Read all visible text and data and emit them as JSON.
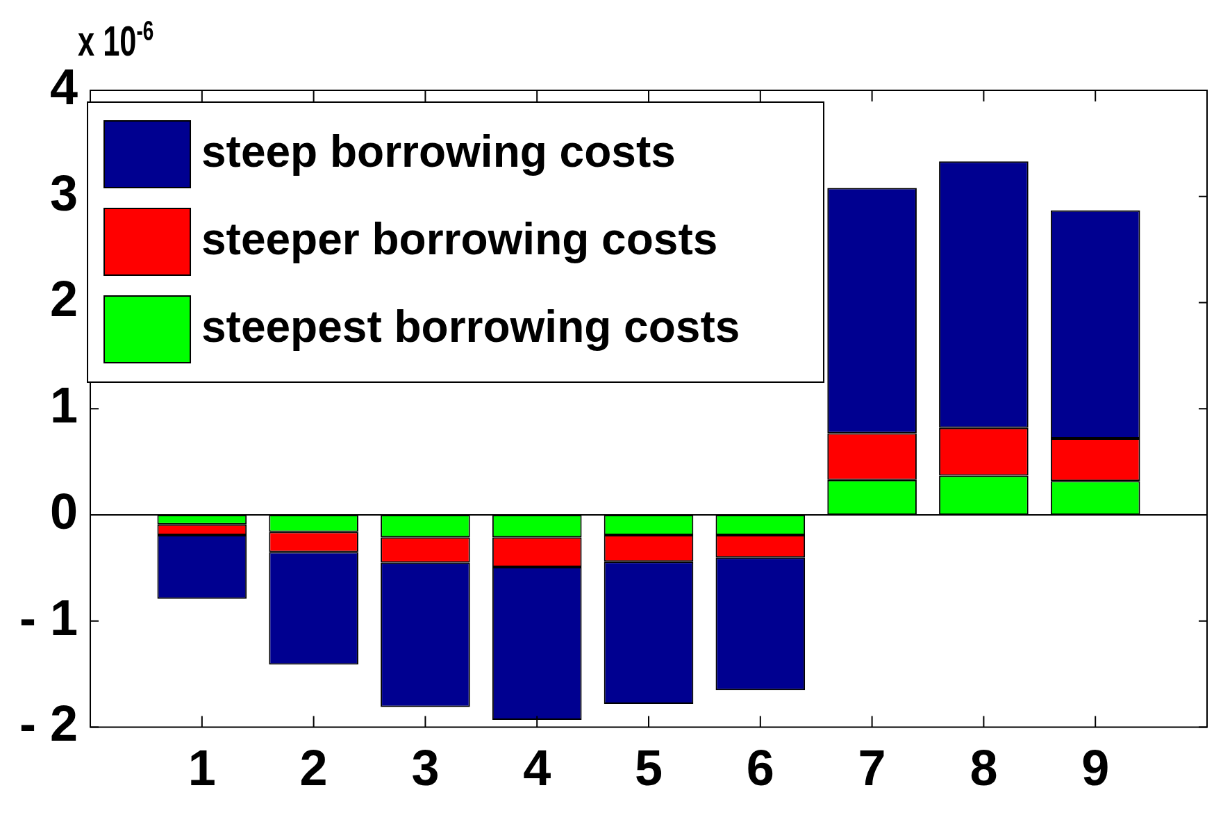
{
  "chart_data": {
    "type": "bar",
    "x": [
      1,
      2,
      3,
      4,
      5,
      6,
      7,
      8,
      9
    ],
    "series": [
      {
        "name": "steepest borrowing costs",
        "color": "#00ff00",
        "values": [
          -0.09,
          -0.16,
          -0.21,
          -0.21,
          -0.19,
          -0.19,
          0.33,
          0.37,
          0.32
        ]
      },
      {
        "name": "steeper borrowing costs",
        "color": "#ff0000",
        "values": [
          -0.1,
          -0.19,
          -0.24,
          -0.28,
          -0.25,
          -0.21,
          0.44,
          0.45,
          0.4
        ]
      },
      {
        "name": "steep borrowing costs",
        "color": "#000090",
        "values": [
          -0.6,
          -1.06,
          -1.36,
          -1.44,
          -1.34,
          -1.25,
          2.31,
          2.51,
          2.15
        ]
      }
    ],
    "stacked": true,
    "ref_lines": [
      {
        "axis": "y",
        "value": 0,
        "color": "#000000"
      }
    ],
    "xlim": [
      0,
      10
    ],
    "xticks": [
      1,
      2,
      3,
      4,
      5,
      6,
      7,
      8,
      9
    ],
    "ylim": [
      -2,
      4
    ],
    "yticks": [
      -2,
      -1,
      0,
      1,
      2,
      3,
      4
    ],
    "annotations": [
      "x 10$^{-6}$"
    ],
    "legend": "top left",
    "grid": false
  }
}
